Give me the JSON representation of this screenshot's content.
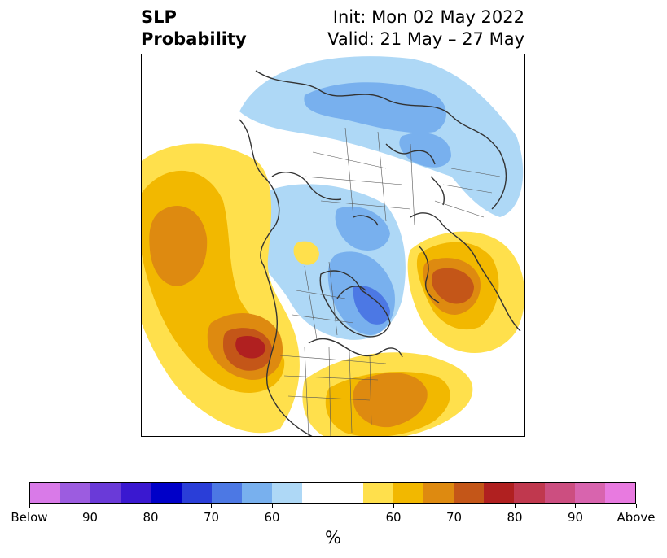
{
  "title": {
    "left_line1": "SLP",
    "left_line2": "Probability",
    "right_line1": "Init: Mon 02 May 2022",
    "right_line2": "Valid: 21 May – 27 May"
  },
  "colorbar": {
    "unit": "%",
    "colors": [
      "#d97ae8",
      "#9c5ce0",
      "#6a3ad8",
      "#3a18d0",
      "#0000c8",
      "#2a3ed8",
      "#4c78e4",
      "#78b0ee",
      "#aed8f6",
      "#ffffff",
      "#ffe04c",
      "#f2b800",
      "#de8a10",
      "#c45618",
      "#b02020",
      "#c0384e",
      "#cc4e80",
      "#d864ae",
      "#e87ae0"
    ],
    "tick_labels": [
      "Below",
      "90",
      "80",
      "70",
      "60",
      "60",
      "70",
      "80",
      "90",
      "Above"
    ]
  },
  "map": {
    "projection": "north polar stereographic",
    "features": [
      {
        "name": "Below-normal SLP over Siberia and Arctic Russia",
        "category": "below"
      },
      {
        "name": "Below-normal SLP over Greenland / Baffin",
        "category": "below"
      },
      {
        "name": "Above-normal SLP over the North Pacific",
        "category": "above"
      },
      {
        "name": "Above-normal SLP over western North America",
        "category": "above"
      },
      {
        "name": "Above-normal SLP over eastern US / western Atlantic",
        "category": "above"
      },
      {
        "name": "Above-normal SLP over Scandinavia / Northern Europe",
        "category": "above"
      }
    ]
  }
}
